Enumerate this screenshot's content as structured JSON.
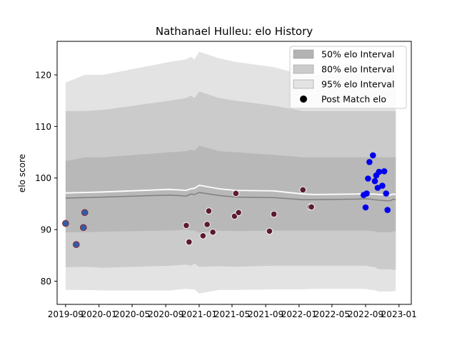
{
  "chart_data": {
    "type": "scatter",
    "title": "Nathanael Hulleu: elo History",
    "xlabel": "",
    "ylabel": "elo score",
    "xlim": [
      "2019-08-01",
      "2023-02-15"
    ],
    "ylim": [
      75.5,
      126.5
    ],
    "yticks": [
      80,
      90,
      100,
      110,
      120
    ],
    "xticks": [
      "2019-09",
      "2020-01",
      "2020-05",
      "2020-09",
      "2021-01",
      "2021-05",
      "2021-09",
      "2022-01",
      "2022-05",
      "2022-09",
      "2023-01"
    ],
    "grid": false,
    "legend_position": "top-right",
    "legend": [
      {
        "label": "50% elo Interval",
        "kind": "band",
        "color": "#b3b3b3"
      },
      {
        "label": "80% elo Interval",
        "kind": "band",
        "color": "#cbcbcb"
      },
      {
        "label": "95% elo Interval",
        "kind": "band",
        "color": "#e3e3e3"
      },
      {
        "label": "Post Match elo",
        "kind": "marker",
        "color": "#000000"
      }
    ],
    "bands": {
      "dates": [
        "2019-09-01",
        "2019-11-10",
        "2020-01-15",
        "2020-09-15",
        "2020-11-15",
        "2020-12-01",
        "2020-12-15",
        "2021-01-01",
        "2021-03-15",
        "2021-05-15",
        "2021-10-01",
        "2022-01-15",
        "2022-03-01",
        "2022-08-01",
        "2022-09-01",
        "2022-09-20",
        "2022-10-01",
        "2022-10-20",
        "2022-11-15",
        "2022-12-01",
        "2022-12-10",
        "2022-12-20"
      ],
      "p95_upper": [
        118.5,
        120,
        120,
        122.5,
        123,
        123.5,
        123,
        124.5,
        123.2,
        122.5,
        121.5,
        120,
        120,
        120,
        120,
        120,
        120,
        120,
        120,
        120,
        120,
        120
      ],
      "p95_lower": [
        78.3,
        78.3,
        78.2,
        78.2,
        78.5,
        78.4,
        78.4,
        77.6,
        78.3,
        78.3,
        78.4,
        78.4,
        78.5,
        78.5,
        78.5,
        78.3,
        78.3,
        78.0,
        78.0,
        78.0,
        78.0,
        78.1
      ],
      "p80_upper": [
        113,
        113,
        113.2,
        115,
        115.5,
        116,
        115.5,
        116.8,
        115.5,
        115,
        114,
        113,
        113,
        113,
        113,
        113,
        113,
        113,
        113,
        113,
        113,
        113
      ],
      "p80_lower": [
        82.7,
        82.8,
        82.6,
        83,
        83.2,
        83,
        83.4,
        82.8,
        82.9,
        82.8,
        83,
        83,
        83,
        83,
        83,
        82.8,
        82.8,
        82.3,
        82.3,
        82.3,
        82.2,
        82.2
      ],
      "p50_upper": [
        103.3,
        104,
        104,
        105,
        105.2,
        105.5,
        105.3,
        106.3,
        105.2,
        105,
        104.5,
        104,
        104,
        104,
        104,
        104,
        104,
        104,
        104,
        104,
        104,
        104
      ],
      "p50_lower": [
        89.5,
        89.5,
        89.6,
        89.8,
        90,
        89.8,
        89.8,
        89.4,
        89.8,
        89.7,
        89.8,
        89.8,
        89.8,
        89.8,
        89.8,
        89.7,
        89.7,
        89.5,
        89.5,
        89.5,
        89.6,
        89.7
      ],
      "median": [
        96.1,
        96.2,
        96.3,
        96.7,
        96.5,
        96.9,
        96.8,
        97.2,
        96.6,
        96.3,
        96.2,
        95.8,
        95.8,
        95.9,
        96.0,
        95.9,
        95.8,
        95.7,
        95.6,
        95.6,
        95.9,
        95.8
      ],
      "mean": [
        97.1,
        97.2,
        97.3,
        97.8,
        97.6,
        97.9,
        98.0,
        98.6,
        97.9,
        97.6,
        97.5,
        96.9,
        96.8,
        96.9,
        97.0,
        96.9,
        96.9,
        96.8,
        96.8,
        96.7,
        96.9,
        96.8
      ]
    },
    "series": [
      {
        "name": "Post Match elo",
        "points": [
          {
            "x": "2019-09-01",
            "y": 91.2,
            "color": "#2e5ea8"
          },
          {
            "x": "2019-10-10",
            "y": 87.1,
            "color": "#2e5ea8"
          },
          {
            "x": "2019-11-05",
            "y": 90.4,
            "color": "#2e5ea8"
          },
          {
            "x": "2019-11-10",
            "y": 93.3,
            "color": "#2e5ea8"
          },
          {
            "x": "2020-11-15",
            "y": 90.8,
            "color": "#5c1a33"
          },
          {
            "x": "2020-11-25",
            "y": 87.6,
            "color": "#5c1a33"
          },
          {
            "x": "2021-01-15",
            "y": 88.8,
            "color": "#5c1a33"
          },
          {
            "x": "2021-01-30",
            "y": 91.0,
            "color": "#5c1a33"
          },
          {
            "x": "2021-02-05",
            "y": 93.6,
            "color": "#5c1a33"
          },
          {
            "x": "2021-02-20",
            "y": 89.5,
            "color": "#5c1a33"
          },
          {
            "x": "2021-05-10",
            "y": 92.6,
            "color": "#5c1a33"
          },
          {
            "x": "2021-05-15",
            "y": 97.0,
            "color": "#5c1a33"
          },
          {
            "x": "2021-05-25",
            "y": 93.3,
            "color": "#5c1a33"
          },
          {
            "x": "2021-09-15",
            "y": 89.7,
            "color": "#5c1a33"
          },
          {
            "x": "2021-10-01",
            "y": 93.0,
            "color": "#5c1a33"
          },
          {
            "x": "2022-01-15",
            "y": 97.7,
            "color": "#5c1a33"
          },
          {
            "x": "2022-02-10",
            "y": 94.4,
            "color": "#5c1a33"
          },
          {
            "x": "2022-02-15",
            "y": 94.4,
            "color": "#5c1a33"
          },
          {
            "x": "2022-08-25",
            "y": 96.7,
            "color": "#0000ee"
          },
          {
            "x": "2022-09-01",
            "y": 94.3,
            "color": "#0000ee"
          },
          {
            "x": "2022-09-05",
            "y": 97.0,
            "color": "#0000ee"
          },
          {
            "x": "2022-09-10",
            "y": 99.9,
            "color": "#0000ee"
          },
          {
            "x": "2022-09-15",
            "y": 103.1,
            "color": "#0000ee"
          },
          {
            "x": "2022-09-28",
            "y": 104.4,
            "color": "#0000ee"
          },
          {
            "x": "2022-10-05",
            "y": 99.4,
            "color": "#0000ee"
          },
          {
            "x": "2022-10-10",
            "y": 100.5,
            "color": "#0000ee"
          },
          {
            "x": "2022-10-15",
            "y": 98.1,
            "color": "#0000ee"
          },
          {
            "x": "2022-10-20",
            "y": 101.2,
            "color": "#0000ee"
          },
          {
            "x": "2022-11-01",
            "y": 98.5,
            "color": "#0000ee"
          },
          {
            "x": "2022-11-08",
            "y": 101.3,
            "color": "#0000ee"
          },
          {
            "x": "2022-11-15",
            "y": 97.0,
            "color": "#0000ee"
          },
          {
            "x": "2022-11-20",
            "y": 93.8,
            "color": "#0000ee"
          }
        ]
      }
    ]
  }
}
